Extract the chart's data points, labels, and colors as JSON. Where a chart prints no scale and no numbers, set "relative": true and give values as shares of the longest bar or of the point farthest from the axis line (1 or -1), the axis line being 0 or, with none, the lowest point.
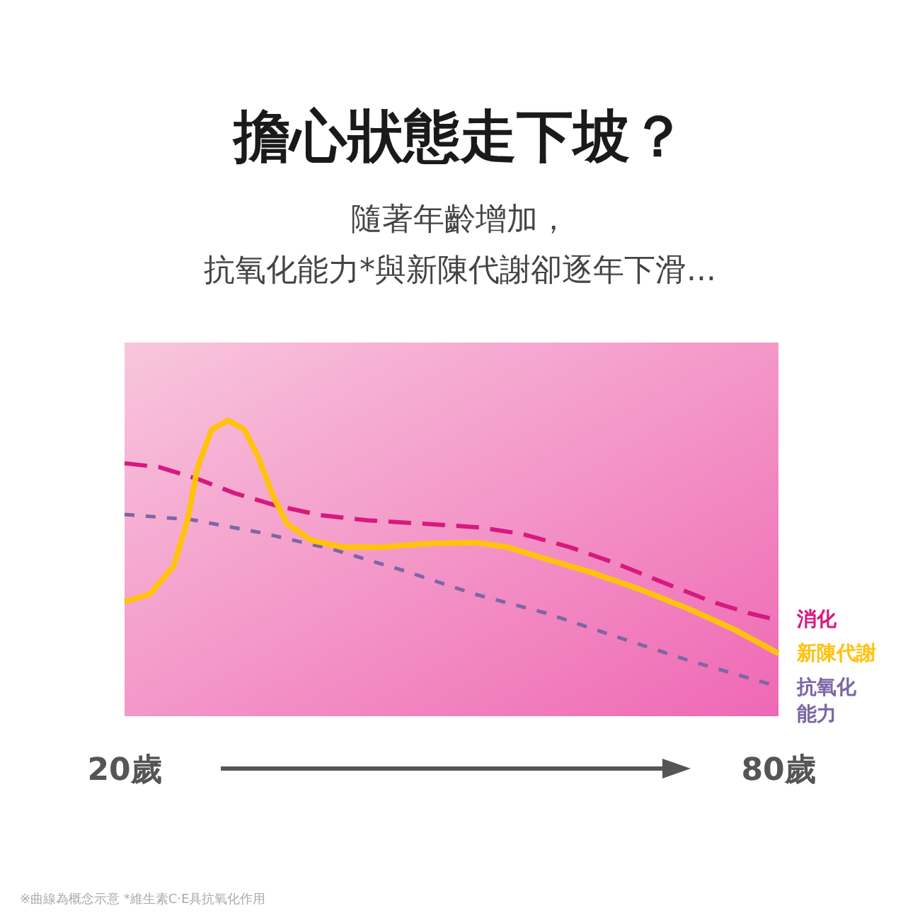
{
  "chart_data": {
    "type": "line",
    "relative": true,
    "title": "擔心狀態走下坡？",
    "subtitle": "隨著年齡增加，",
    "xlim": [
      20,
      80
    ],
    "xticks": [
      {
        "value": 20,
        "label": "20歲"
      },
      {
        "value": 80,
        "label": "80歲"
      }
    ],
    "legend": "right",
    "grid": false,
    "marker": "none",
    "series": [
      {
        "name": "消化",
        "color": "#d6197f",
        "line_style": "dashed",
        "x": [
          20,
          23.2,
          26.7,
          30.1,
          34.0,
          37.9,
          42.3,
          47.4,
          52.6,
          56.5,
          60.9,
          65.2,
          69.5,
          73.9,
          77.3,
          80
        ],
        "values": [
          0.855,
          0.842,
          0.802,
          0.754,
          0.711,
          0.68,
          0.662,
          0.651,
          0.638,
          0.616,
          0.571,
          0.515,
          0.451,
          0.387,
          0.348,
          0.324
        ]
      },
      {
        "name": "新陳代謝",
        "color": "#ffc20e",
        "line_style": "solid",
        "x": [
          20,
          22.3,
          24.5,
          25.8,
          26.7,
          28.0,
          29.5,
          31.0,
          32.3,
          33.6,
          34.9,
          37.1,
          40.1,
          43.5,
          47.9,
          52.2,
          55.2,
          58.7,
          63.0,
          67.4,
          71.7,
          76.0,
          80
        ],
        "values": [
          0.387,
          0.412,
          0.507,
          0.666,
          0.842,
          0.969,
          1,
          0.969,
          0.874,
          0.747,
          0.651,
          0.595,
          0.571,
          0.571,
          0.584,
          0.587,
          0.571,
          0.531,
          0.484,
          0.427,
          0.364,
          0.292,
          0.212
        ]
      },
      {
        "name": "抗氧化能力",
        "color": "#7d66a3",
        "line_style": "dotted",
        "x": [
          20,
          26.2,
          32.7,
          39.2,
          45.7,
          52.2,
          58.7,
          65.2,
          71.7,
          80
        ],
        "values": [
          0.682,
          0.664,
          0.619,
          0.563,
          0.491,
          0.412,
          0.348,
          0.268,
          0.189,
          0.1
        ]
      }
    ],
    "annotations": [
      "抗氧化能力*與新陳代謝卻逐年下滑...",
      "※曲線為概念示意 *維生素C‧E具抗氧化作用"
    ]
  }
}
